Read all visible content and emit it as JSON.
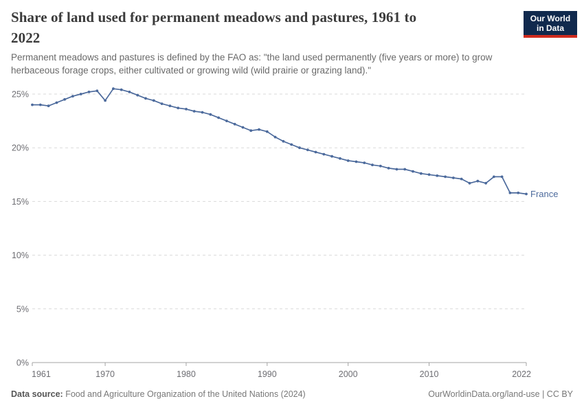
{
  "header": {
    "title_lines": [
      "Share of land used for permanent meadows and pastures, 1961 to",
      "2022"
    ],
    "subtitle_lines": [
      "Permanent meadows and pastures is defined by the FAO as: \"the land used permanently (five years or more) to grow",
      "herbaceous forage crops, either cultivated or growing wild (wild prairie or grazing land).\""
    ],
    "logo": {
      "line1": "Our World",
      "line2": "in Data",
      "bg_color": "#10294d",
      "bar_color": "#d02b1e"
    }
  },
  "chart_data": {
    "type": "line",
    "title": "Share of land used for permanent meadows and pastures, 1961 to 2022",
    "xlabel": "",
    "ylabel": "",
    "xlim": [
      1961,
      2022
    ],
    "ylim": [
      0,
      25
    ],
    "grid": "horizontal-dashed",
    "legend_position": "end-of-line",
    "x_ticks": [
      1961,
      1970,
      1980,
      1990,
      2000,
      2010,
      2022
    ],
    "y_ticks": [
      {
        "value": 0,
        "label": "0%"
      },
      {
        "value": 5,
        "label": "5%"
      },
      {
        "value": 10,
        "label": "10%"
      },
      {
        "value": 15,
        "label": "15%"
      },
      {
        "value": 20,
        "label": "20%"
      },
      {
        "value": 25,
        "label": "25%"
      }
    ],
    "series": [
      {
        "name": "France",
        "color": "#4C6A9C",
        "x": [
          1961,
          1962,
          1963,
          1964,
          1965,
          1966,
          1967,
          1968,
          1969,
          1970,
          1971,
          1972,
          1973,
          1974,
          1975,
          1976,
          1977,
          1978,
          1979,
          1980,
          1981,
          1982,
          1983,
          1984,
          1985,
          1986,
          1987,
          1988,
          1989,
          1990,
          1991,
          1992,
          1993,
          1994,
          1995,
          1996,
          1997,
          1998,
          1999,
          2000,
          2001,
          2002,
          2003,
          2004,
          2005,
          2006,
          2007,
          2008,
          2009,
          2010,
          2011,
          2012,
          2013,
          2014,
          2015,
          2016,
          2017,
          2018,
          2019,
          2020,
          2021,
          2022
        ],
        "values": [
          24.0,
          24.0,
          23.9,
          24.2,
          24.5,
          24.8,
          25.0,
          25.2,
          25.3,
          24.4,
          25.5,
          25.4,
          25.2,
          24.9,
          24.6,
          24.4,
          24.1,
          23.9,
          23.7,
          23.6,
          23.4,
          23.3,
          23.1,
          22.8,
          22.5,
          22.2,
          21.9,
          21.6,
          21.7,
          21.5,
          21.0,
          20.6,
          20.3,
          20.0,
          19.8,
          19.6,
          19.4,
          19.2,
          19.0,
          18.8,
          18.7,
          18.6,
          18.4,
          18.3,
          18.1,
          18.0,
          18.0,
          17.8,
          17.6,
          17.5,
          17.4,
          17.3,
          17.2,
          17.1,
          16.7,
          16.9,
          16.7,
          17.3,
          17.3,
          15.8,
          15.8,
          15.7
        ]
      }
    ],
    "colors": {
      "line": "#4C6A9C",
      "gridline": "#d9d9d9",
      "axis": "#a3a3a3",
      "tick_label": "#6e6e73"
    }
  },
  "footer": {
    "source_label": "Data source:",
    "source_text": " Food and Agriculture Organization of the United Nations (2024)",
    "link_text": "OurWorldinData.org/land-use | CC BY"
  }
}
